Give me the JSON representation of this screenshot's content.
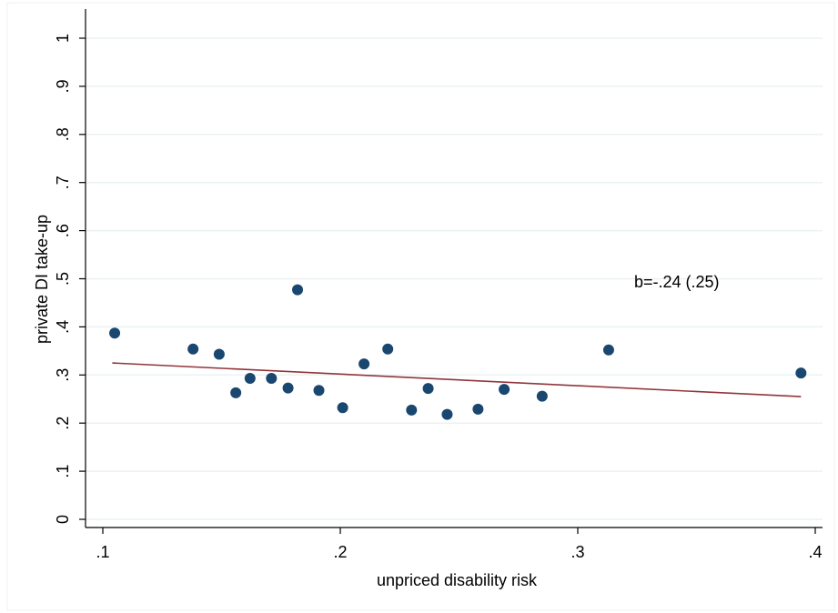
{
  "chart_data": {
    "type": "scatter",
    "xlabel": "unpriced disability risk",
    "ylabel": "private DI take-up",
    "xlim": [
      0.1,
      0.4
    ],
    "ylim": [
      0,
      1
    ],
    "x_ticks": [
      {
        "value": 0.1,
        "label": ".1"
      },
      {
        "value": 0.2,
        "label": ".2"
      },
      {
        "value": 0.3,
        "label": ".3"
      },
      {
        "value": 0.4,
        "label": ".4"
      }
    ],
    "y_ticks": [
      {
        "value": 0,
        "label": "0"
      },
      {
        "value": 0.1,
        "label": ".1"
      },
      {
        "value": 0.2,
        "label": ".2"
      },
      {
        "value": 0.3,
        "label": ".3"
      },
      {
        "value": 0.4,
        "label": ".4"
      },
      {
        "value": 0.5,
        "label": ".5"
      },
      {
        "value": 0.6,
        "label": ".6"
      },
      {
        "value": 0.7,
        "label": ".7"
      },
      {
        "value": 0.8,
        "label": ".8"
      },
      {
        "value": 0.9,
        "label": ".9"
      },
      {
        "value": 1,
        "label": "1"
      }
    ],
    "grid": "horizontal",
    "points": [
      {
        "x": 0.105,
        "y": 0.387
      },
      {
        "x": 0.138,
        "y": 0.354
      },
      {
        "x": 0.149,
        "y": 0.343
      },
      {
        "x": 0.156,
        "y": 0.263
      },
      {
        "x": 0.162,
        "y": 0.293
      },
      {
        "x": 0.171,
        "y": 0.293
      },
      {
        "x": 0.178,
        "y": 0.273
      },
      {
        "x": 0.182,
        "y": 0.477
      },
      {
        "x": 0.191,
        "y": 0.268
      },
      {
        "x": 0.201,
        "y": 0.232
      },
      {
        "x": 0.21,
        "y": 0.323
      },
      {
        "x": 0.22,
        "y": 0.354
      },
      {
        "x": 0.23,
        "y": 0.227
      },
      {
        "x": 0.237,
        "y": 0.272
      },
      {
        "x": 0.245,
        "y": 0.218
      },
      {
        "x": 0.258,
        "y": 0.229
      },
      {
        "x": 0.269,
        "y": 0.27
      },
      {
        "x": 0.285,
        "y": 0.256
      },
      {
        "x": 0.313,
        "y": 0.352
      },
      {
        "x": 0.394,
        "y": 0.304
      }
    ],
    "fit_line": {
      "x": [
        0.104,
        0.394
      ],
      "y": [
        0.325,
        0.255
      ]
    },
    "annotation": "b=-.24 (.25)",
    "colors": {
      "points": "#1a476f",
      "fit_line": "#90353b",
      "grid": "#eaf2f3",
      "axis": "#000000",
      "background": "#ffffff"
    }
  }
}
